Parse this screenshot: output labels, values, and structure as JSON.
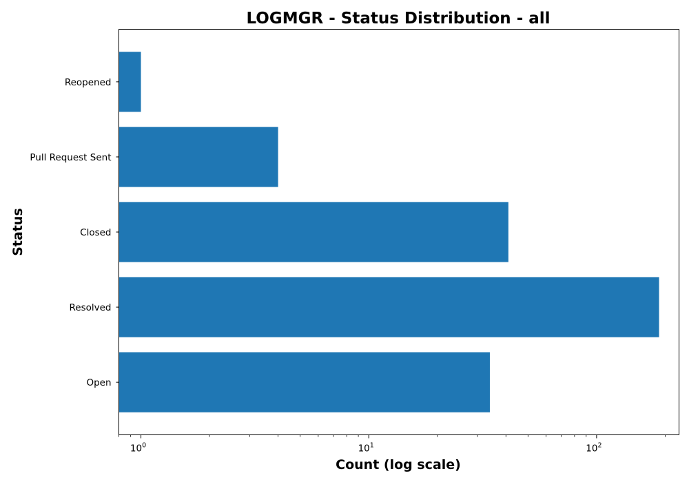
{
  "chart_data": {
    "type": "bar",
    "orientation": "horizontal",
    "title": "LOGMGR - Status Distribution - all",
    "xlabel": "Count (log scale)",
    "ylabel": "Status",
    "xscale": "log",
    "xlim": [
      0.8,
      230
    ],
    "categories": [
      "Open",
      "Resolved",
      "Closed",
      "Pull Request Sent",
      "Reopened"
    ],
    "values": [
      34,
      188,
      41,
      4,
      1
    ],
    "x_ticks": [
      {
        "value": 1,
        "base": "10",
        "exp": "0"
      },
      {
        "value": 10,
        "base": "10",
        "exp": "1"
      },
      {
        "value": 100,
        "base": "10",
        "exp": "2"
      }
    ],
    "bar_color": "#1f77b4",
    "grid": false,
    "legend": "none"
  }
}
